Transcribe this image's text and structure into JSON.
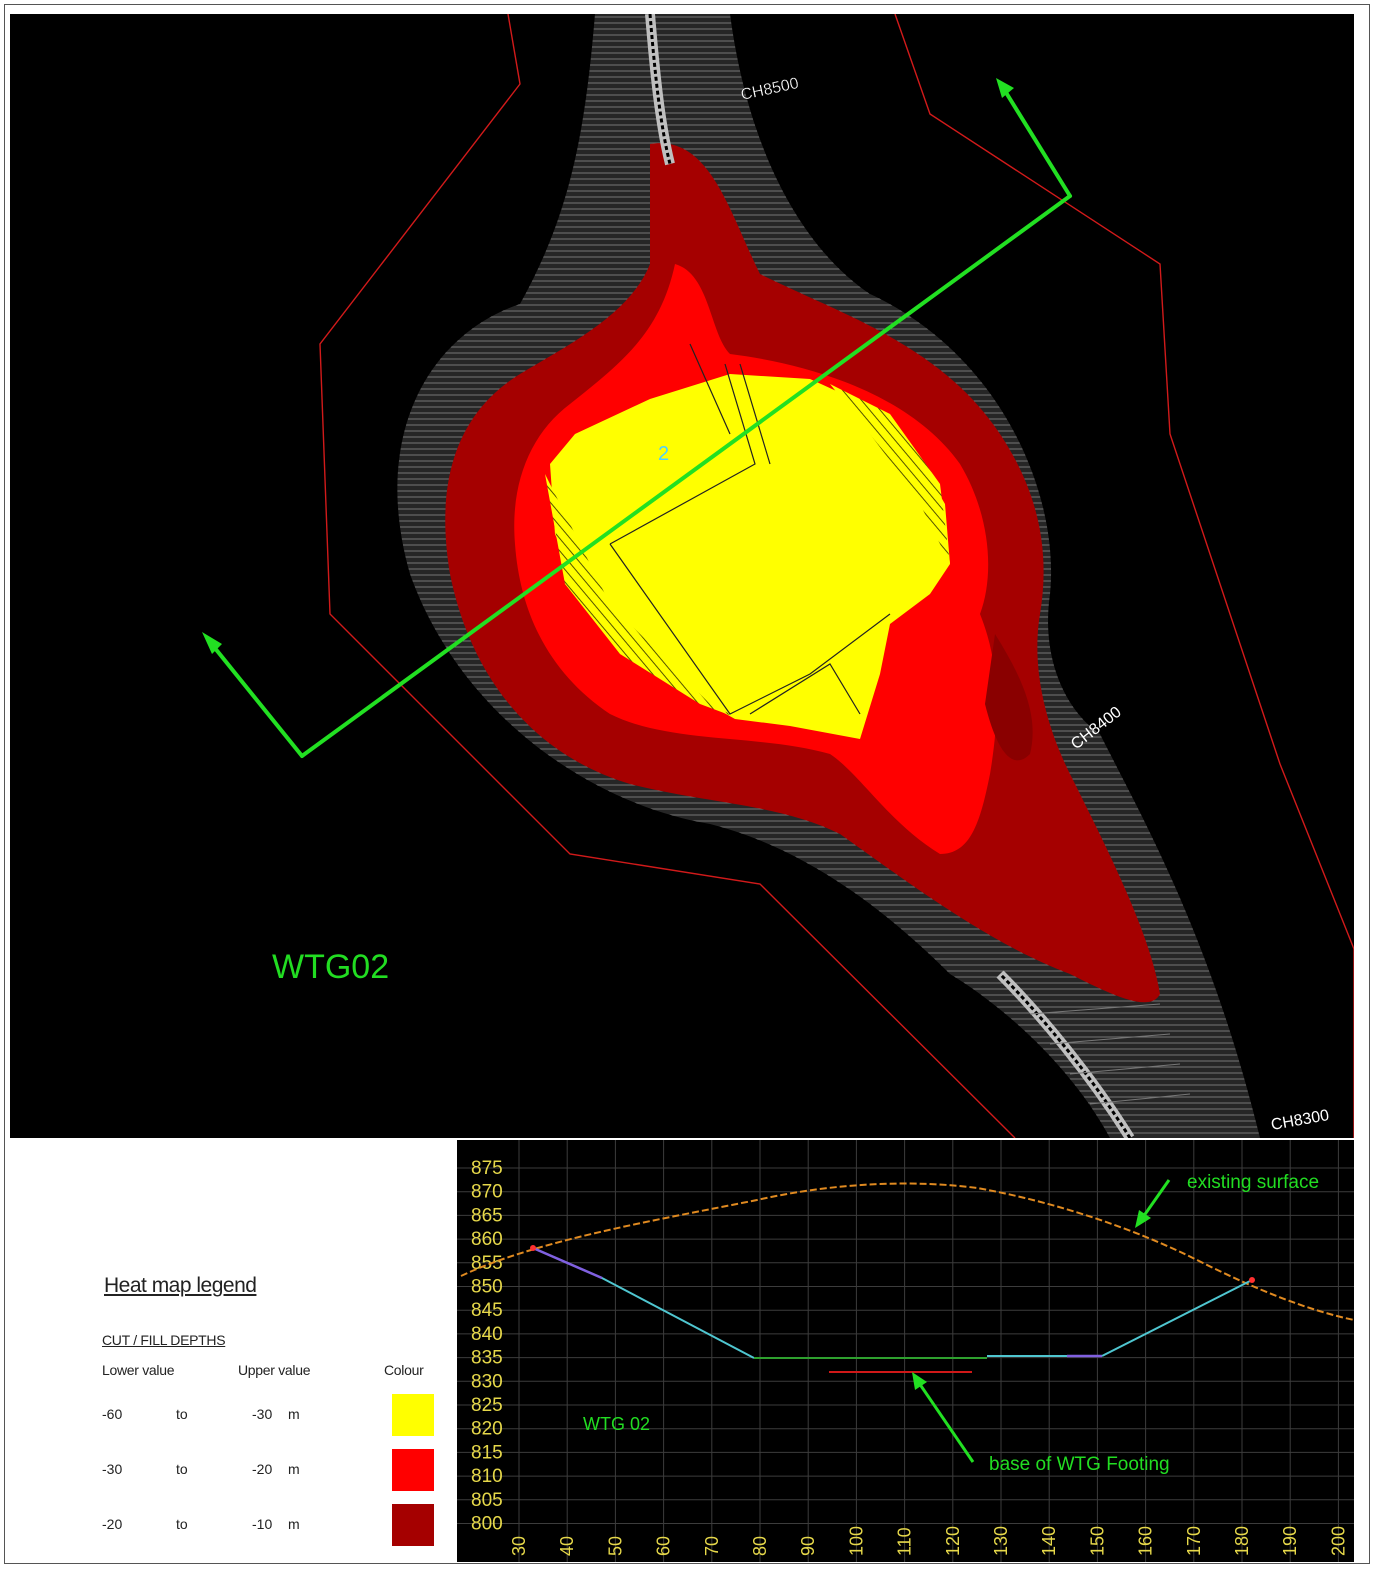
{
  "map": {
    "wtg_label": "WTG02",
    "turbine_number": "2",
    "chainage_labels": [
      "CH8500",
      "CH8400",
      "CH8300"
    ],
    "colors": {
      "background": "#000000",
      "boundary": "#d11a1a",
      "section_line": "#22e022",
      "label": "#22dd22",
      "cut_deep": "#ffff00",
      "cut_mid": "#ff0000",
      "cut_shallow": "#a50000",
      "batter": "#3a3a3a"
    }
  },
  "profile": {
    "wtg_label": "WTG 02",
    "y_ticks": [
      "875",
      "870",
      "865",
      "860",
      "855",
      "850",
      "845",
      "840",
      "835",
      "830",
      "825",
      "820",
      "815",
      "810",
      "805",
      "800"
    ],
    "x_ticks": [
      "30",
      "40",
      "50",
      "60",
      "70",
      "80",
      "90",
      "100",
      "110",
      "120",
      "130",
      "140",
      "150",
      "160",
      "170",
      "180",
      "190",
      "200"
    ],
    "annotations": {
      "existing_surface": "existing surface",
      "footing": "base of WTG Footing"
    }
  },
  "legend": {
    "title": "Heat map legend",
    "subtitle": "CUT / FILL DEPTHS",
    "col_lower": "Lower value",
    "col_upper": "Upper value",
    "col_colour": "Colour",
    "rows": [
      {
        "lower": "-60",
        "to": "to",
        "upper": "-30",
        "unit": "m",
        "color": "#ffff00"
      },
      {
        "lower": "-30",
        "to": "to",
        "upper": "-20",
        "unit": "m",
        "color": "#ff0000"
      },
      {
        "lower": "-20",
        "to": "to",
        "upper": "-10",
        "unit": "m",
        "color": "#a50000"
      }
    ]
  }
}
